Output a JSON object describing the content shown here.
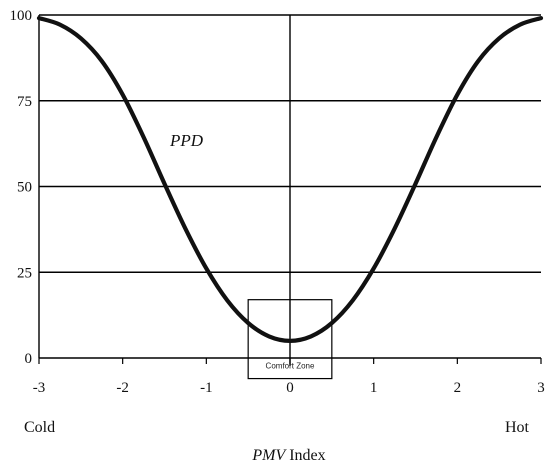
{
  "chart_data": {
    "type": "line",
    "x_ticks": [
      "-3",
      "-2",
      "-1",
      "0",
      "1",
      "2",
      "3"
    ],
    "y_ticks": [
      "0",
      "25",
      "50",
      "75",
      "100"
    ],
    "xlim": [
      -3,
      3
    ],
    "ylim": [
      0,
      100
    ],
    "grid": "horizontal",
    "x_caption_left": "Cold",
    "x_caption_right": "Hot",
    "xlabel_italic": "PMV",
    "xlabel_rest": " Index",
    "series": [
      {
        "name": "PPD",
        "points": [
          [
            -3.0,
            99.1
          ],
          [
            -2.75,
            97.2
          ],
          [
            -2.5,
            93.2
          ],
          [
            -2.25,
            86.6
          ],
          [
            -2.0,
            76.8
          ],
          [
            -1.75,
            64.4
          ],
          [
            -1.5,
            50.8
          ],
          [
            -1.25,
            37.7
          ],
          [
            -1.0,
            26.1
          ],
          [
            -0.75,
            16.8
          ],
          [
            -0.5,
            10.2
          ],
          [
            -0.25,
            6.3
          ],
          [
            0.0,
            5.0
          ],
          [
            0.25,
            6.3
          ],
          [
            0.5,
            10.2
          ],
          [
            0.75,
            16.8
          ],
          [
            1.0,
            26.1
          ],
          [
            1.25,
            37.7
          ],
          [
            1.5,
            50.8
          ],
          [
            1.75,
            64.4
          ],
          [
            2.0,
            76.8
          ],
          [
            2.25,
            86.6
          ],
          [
            2.5,
            93.2
          ],
          [
            2.75,
            97.2
          ],
          [
            3.0,
            99.1
          ]
        ]
      }
    ],
    "annotation": {
      "label": "Comfort Zone",
      "x_range": [
        -0.5,
        0.5
      ],
      "y_range": [
        -6,
        17
      ]
    }
  }
}
